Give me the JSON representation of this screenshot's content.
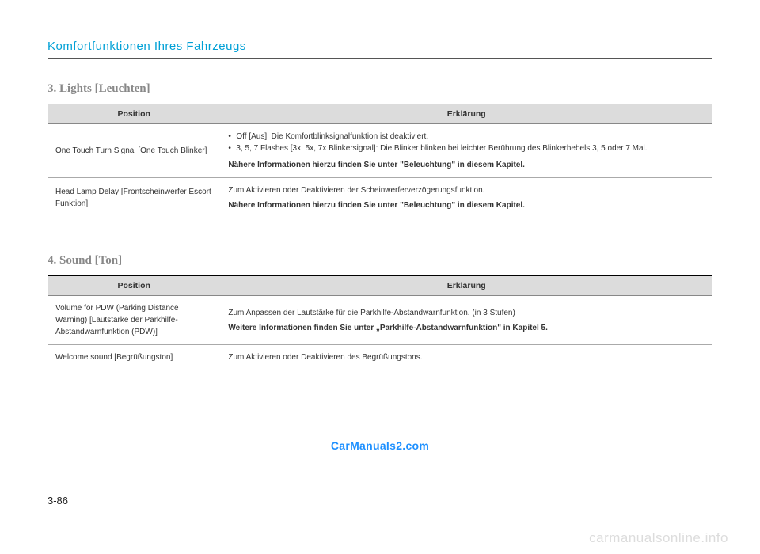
{
  "chapter": "Komfortfunktionen Ihres Fahrzeugs",
  "page_number": "3-86",
  "watermark_blue": "CarManuals2.com",
  "watermark_gray": "carmanualsonline.info",
  "section3": {
    "title": "3. Lights [Leuchten]",
    "col1": "Position",
    "col2": "Erklärung",
    "row1": {
      "pos": "One Touch Turn Signal [One Touch Blinker]",
      "b1": "Off [Aus]: Die Komfortblinksignalfunktion ist deaktiviert.",
      "b2": "3, 5, 7 Flashes [3x, 5x, 7x Blinkersignal]: Die Blinker blinken bei leichter Berührung des Blinkerhebels 3, 5 oder 7 Mal.",
      "note": "Nähere Informationen hierzu finden Sie unter \"Beleuchtung\" in diesem Kapitel."
    },
    "row2": {
      "pos": "Head Lamp Delay [Frontscheinwerfer Escort Funktion]",
      "desc": "Zum Aktivieren oder Deaktivieren der Scheinwerferverzögerungsfunktion.",
      "note": "Nähere Informationen hierzu finden Sie unter \"Beleuchtung\" in diesem Kapitel."
    }
  },
  "section4": {
    "title": "4. Sound [Ton]",
    "col1": "Position",
    "col2": "Erklärung",
    "row1": {
      "pos": "Volume for PDW (Parking Distance Warning) [Lautstärke der Parkhilfe-Abstandwarnfunktion (PDW)]",
      "desc": "Zum Anpassen der Lautstärke für die Parkhilfe-Abstandwarnfunktion. (in 3 Stufen)",
      "note": "Weitere Informationen finden Sie unter „Parkhilfe-Abstandwarnfunktion\" in Kapitel 5."
    },
    "row2": {
      "pos": "Welcome sound [Begrüßungston]",
      "desc": "Zum Aktivieren oder Deaktivieren des Begrüßungstons."
    }
  }
}
